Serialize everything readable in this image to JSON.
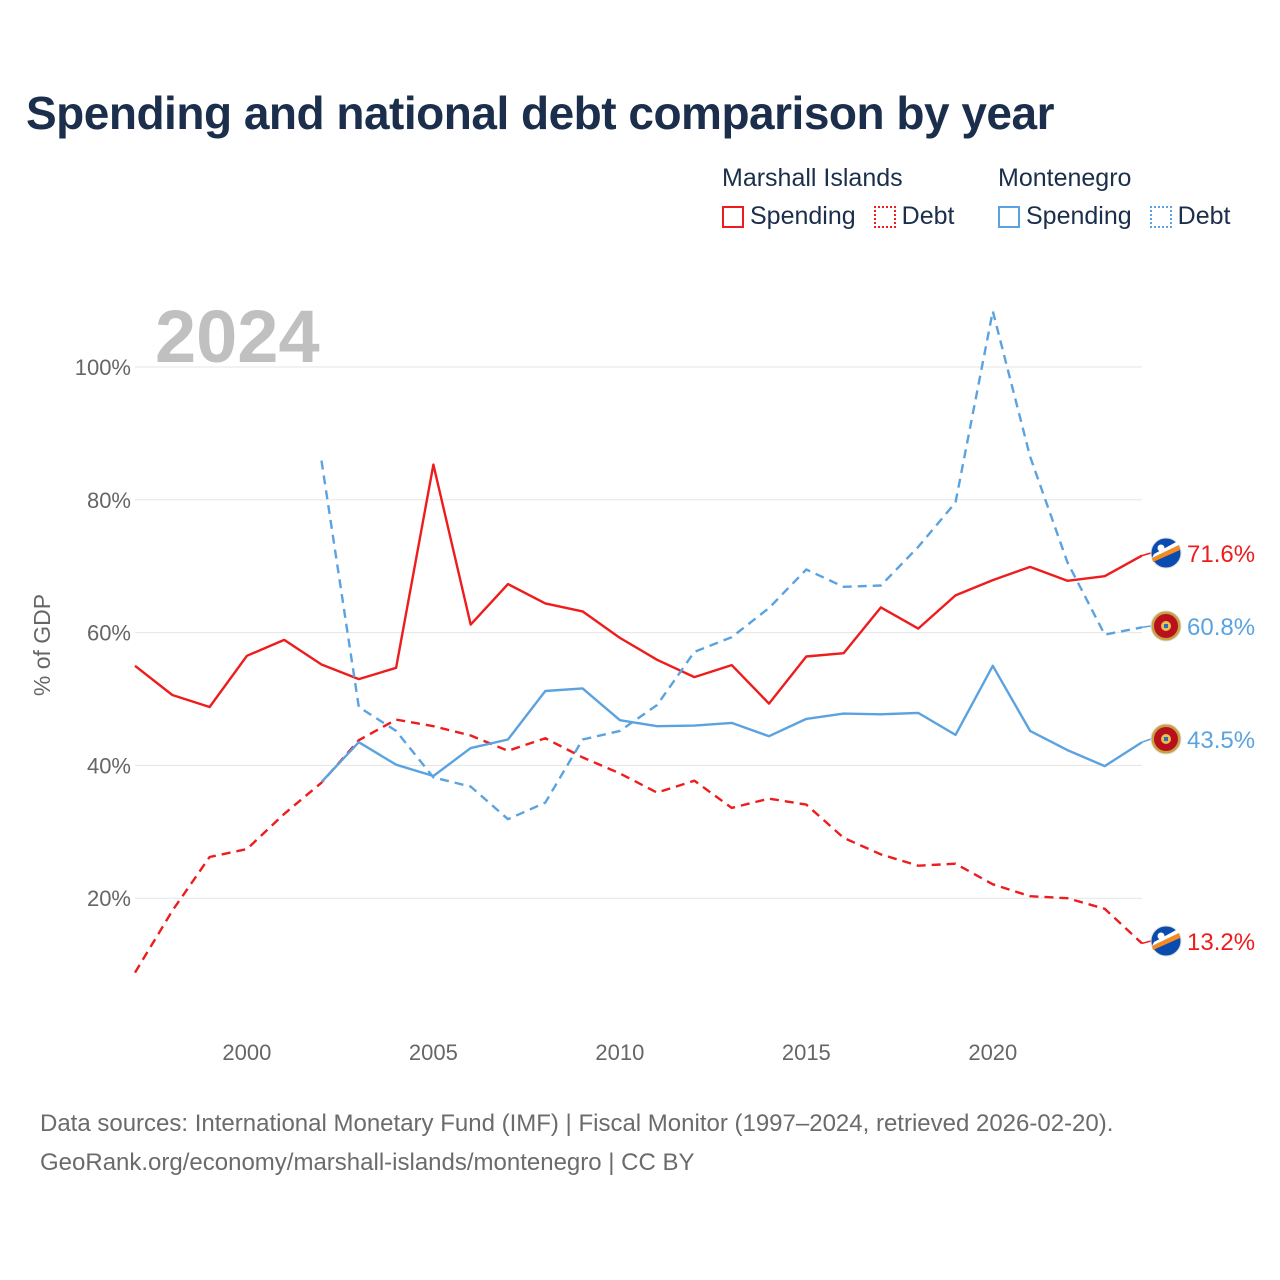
{
  "title": "Spending and national debt comparison by year",
  "legend": {
    "groups": [
      {
        "name": "Marshall Islands",
        "items": [
          {
            "label": "Spending",
            "style": "solid",
            "color": "#ee1c1c"
          },
          {
            "label": "Debt",
            "style": "dotted",
            "color": "#ee1c1c"
          }
        ]
      },
      {
        "name": "Montenegro",
        "items": [
          {
            "label": "Spending",
            "style": "solid",
            "color": "#5ba3e0"
          },
          {
            "label": "Debt",
            "style": "dotted",
            "color": "#5ba3e0"
          }
        ]
      }
    ]
  },
  "colors": {
    "marshall": "#ee1c1c",
    "montenegro": "#5ba3e0",
    "grid": "#e5e5e5",
    "axis_text": "#666666",
    "year_label": "#c0c0c0",
    "title": "#1b2e4b"
  },
  "chart_data": {
    "type": "line",
    "title": "Spending and national debt comparison by year",
    "year_label": "2024",
    "ylabel": "% of GDP",
    "xlabel": "",
    "xlim": [
      1997,
      2024
    ],
    "ylim": [
      0,
      110
    ],
    "x_ticks": [
      2000,
      2005,
      2010,
      2015,
      2020
    ],
    "y_ticks": [
      20,
      40,
      60,
      80,
      100
    ],
    "y_tick_labels": [
      "20%",
      "40%",
      "60%",
      "80%",
      "100%"
    ],
    "series": [
      {
        "name": "Marshall Islands Spending",
        "country": "Marshall Islands",
        "metric": "Spending",
        "color": "#ee1c1c",
        "dash": "solid",
        "end_label": "71.6%",
        "flag": "marshall-islands",
        "x": [
          1997,
          1998,
          1999,
          2000,
          2001,
          2002,
          2003,
          2004,
          2005,
          2006,
          2007,
          2008,
          2009,
          2010,
          2011,
          2012,
          2013,
          2014,
          2015,
          2016,
          2017,
          2018,
          2019,
          2020,
          2021,
          2022,
          2023,
          2024
        ],
        "values": [
          55.0,
          50.6,
          48.8,
          56.5,
          58.9,
          55.2,
          53.0,
          54.7,
          85.3,
          61.2,
          67.3,
          64.4,
          63.2,
          59.2,
          55.9,
          53.3,
          55.1,
          49.3,
          56.4,
          56.9,
          63.8,
          60.6,
          65.6,
          67.9,
          69.9,
          67.8,
          68.5,
          71.6
        ]
      },
      {
        "name": "Marshall Islands Debt",
        "country": "Marshall Islands",
        "metric": "Debt",
        "color": "#ee1c1c",
        "dash": "dashed",
        "end_label": "13.2%",
        "flag": "marshall-islands",
        "x": [
          1997,
          1998,
          1999,
          2000,
          2001,
          2002,
          2003,
          2004,
          2005,
          2006,
          2007,
          2008,
          2009,
          2010,
          2011,
          2012,
          2013,
          2014,
          2015,
          2016,
          2017,
          2018,
          2019,
          2020,
          2021,
          2022,
          2023,
          2024
        ],
        "values": [
          8.8,
          18.1,
          26.2,
          27.4,
          32.7,
          37.4,
          43.8,
          46.9,
          45.9,
          44.5,
          42.2,
          44.1,
          41.2,
          38.8,
          35.9,
          37.7,
          33.6,
          35.0,
          34.1,
          29.1,
          26.6,
          24.9,
          25.2,
          22.1,
          20.3,
          20.0,
          18.4,
          13.2
        ]
      },
      {
        "name": "Montenegro Spending",
        "country": "Montenegro",
        "metric": "Spending",
        "color": "#5ba3e0",
        "dash": "solid",
        "end_label": "43.5%",
        "flag": "montenegro",
        "x": [
          2002,
          2003,
          2004,
          2005,
          2006,
          2007,
          2008,
          2009,
          2010,
          2011,
          2012,
          2013,
          2014,
          2015,
          2016,
          2017,
          2018,
          2019,
          2020,
          2021,
          2022,
          2023,
          2024
        ],
        "values": [
          37.5,
          43.5,
          40.1,
          38.4,
          42.6,
          43.9,
          51.2,
          51.6,
          46.8,
          45.9,
          46.0,
          46.4,
          44.4,
          47.0,
          47.8,
          47.7,
          47.9,
          44.6,
          55.0,
          45.2,
          42.3,
          39.9,
          43.5
        ]
      },
      {
        "name": "Montenegro Debt",
        "country": "Montenegro",
        "metric": "Debt",
        "color": "#5ba3e0",
        "dash": "dashed",
        "end_label": "60.8%",
        "flag": "montenegro",
        "x": [
          2002,
          2003,
          2004,
          2005,
          2006,
          2007,
          2008,
          2009,
          2010,
          2011,
          2012,
          2013,
          2014,
          2015,
          2016,
          2017,
          2018,
          2019,
          2020,
          2021,
          2022,
          2023,
          2024
        ],
        "values": [
          85.9,
          48.8,
          45.2,
          38.2,
          36.8,
          31.9,
          34.4,
          43.9,
          45.2,
          49.1,
          57.1,
          59.3,
          63.7,
          69.5,
          66.9,
          67.1,
          72.9,
          79.6,
          108.4,
          86.5,
          70.6,
          59.7,
          60.8
        ]
      }
    ]
  },
  "footer": {
    "line1": "Data sources: International Monetary Fund (IMF) | Fiscal Monitor (1997–2024, retrieved 2026-02-20).",
    "line2": "GeoRank.org/economy/marshall-islands/montenegro | CC BY"
  }
}
